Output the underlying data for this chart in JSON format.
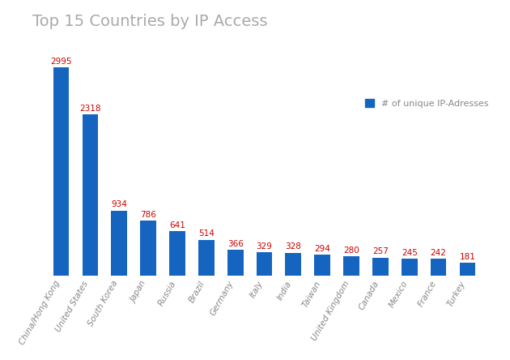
{
  "title": "Top 15 Countries by IP Access",
  "categories": [
    "China/Hong Kong",
    "United States",
    "South Korea",
    "Japan",
    "Russia",
    "Brazil",
    "Germany",
    "Italy",
    "India",
    "Taiwan",
    "United Kingdom",
    "Canada",
    "Mexico",
    "France",
    "Turkey"
  ],
  "values": [
    2995,
    2318,
    934,
    786,
    641,
    514,
    366,
    329,
    328,
    294,
    280,
    257,
    245,
    242,
    181
  ],
  "bar_color": "#1565c0",
  "label_color": "#cc0000",
  "legend_label": "# of unique IP-Adresses",
  "title_fontsize": 14,
  "label_fontsize": 7.5,
  "tick_fontsize": 7.5,
  "background_color": "#ffffff",
  "ylim": [
    0,
    3400
  ]
}
